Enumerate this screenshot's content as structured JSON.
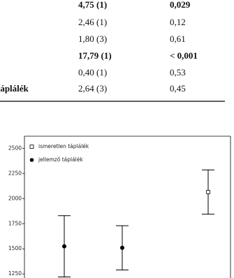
{
  "table": {
    "rows": [
      {
        "cells": [
          "4,75 (1)",
          "0,029"
        ],
        "bold": true
      },
      {
        "cells": [
          "2,46 (1)",
          "0,12"
        ],
        "bold": false
      },
      {
        "cells": [
          "1,80 (3)",
          "0,61"
        ],
        "bold": false
      },
      {
        "cells": [
          "17,79 (1)",
          "< 0,001"
        ],
        "bold": true
      },
      {
        "cells": [
          "0,40 (1)",
          "0,53"
        ],
        "bold": false
      },
      {
        "label": "táplálék",
        "cells": [
          "2,64 (3)",
          "0,45"
        ],
        "bold": false
      }
    ]
  },
  "chart_data": {
    "type": "errorbar",
    "categories": [
      null,
      null,
      null
    ],
    "series": [
      {
        "name": "ismeretlen táplálék",
        "marker": "open-square",
        "color": "#000000",
        "values": [
          null,
          null,
          2065
        ],
        "errors": [
          null,
          null,
          220
        ]
      },
      {
        "name": "jellemző táplálék",
        "marker": "filled-circle",
        "color": "#000000",
        "values": [
          1525,
          1510,
          null
        ],
        "errors": [
          305,
          220,
          null
        ]
      }
    ],
    "ylim": [
      1210,
      2620
    ],
    "yticks": [
      1250,
      1500,
      1750,
      2000,
      2250,
      2500
    ],
    "legend": "top-left"
  }
}
